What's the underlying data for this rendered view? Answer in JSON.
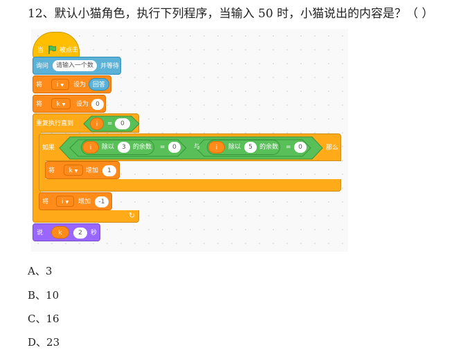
{
  "question": "12、默认小猫角色，执行下列程序，当输入 50 时，小猫说出的内容是？（   ）",
  "script": {
    "hat": {
      "label": "当",
      "flag_icon": "green-flag-icon",
      "suffix": "被点击"
    },
    "ask": {
      "label": "询问",
      "prompt": "请输入一个数",
      "suffix": "并等待"
    },
    "set_i": {
      "label": "将",
      "var": "i",
      "mid": "设为",
      "value": "回答"
    },
    "set_k": {
      "label": "将",
      "var": "k",
      "mid": "设为",
      "value": "0"
    },
    "repeat": {
      "label": "重复执行直到",
      "var": "i",
      "op": "=",
      "value": "0"
    },
    "if": {
      "label": "如果",
      "cond1": {
        "var": "i",
        "op": "除以",
        "num": "3",
        "suffix": "的余数",
        "eq": "=",
        "value": "0"
      },
      "and": "与",
      "cond2": {
        "var": "i",
        "op": "除以",
        "num": "5",
        "suffix": "的余数",
        "eq": "=",
        "value": "0"
      },
      "then": "那么"
    },
    "change_k": {
      "label": "将",
      "var": "k",
      "mid": "增加",
      "value": "1"
    },
    "change_i": {
      "label": "将",
      "var": "i",
      "mid": "增加",
      "value": "-1"
    },
    "loop_arrow": "↻",
    "say": {
      "label": "说",
      "var": "k",
      "secs": "2",
      "suffix": "秒"
    }
  },
  "options": [
    {
      "label": "A、3"
    },
    {
      "label": "B、10"
    },
    {
      "label": "C、16"
    },
    {
      "label": "D、23"
    }
  ],
  "colors": {
    "events": "#FFBF00",
    "sensing": "#5CB1D6",
    "variables": "#FF8C1A",
    "control": "#FFAB19",
    "operators": "#59C059",
    "looks": "#9966FF"
  }
}
